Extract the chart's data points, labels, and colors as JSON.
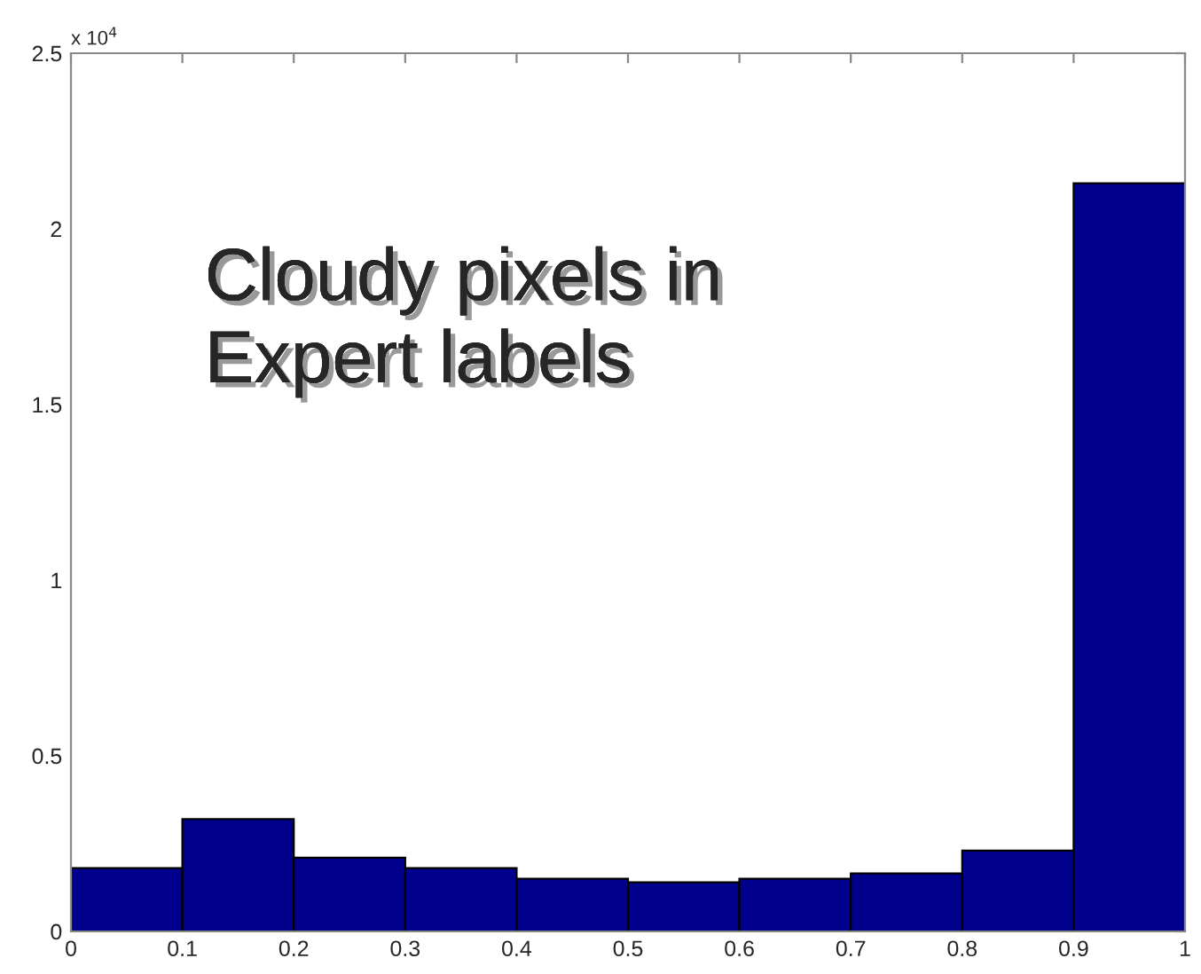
{
  "chart_data": {
    "type": "histogram",
    "bins": [
      0,
      0.1,
      0.2,
      0.3,
      0.4,
      0.5,
      0.6,
      0.7,
      0.8,
      0.9,
      1
    ],
    "values": [
      0.18,
      0.32,
      0.21,
      0.18,
      0.15,
      0.14,
      0.15,
      0.165,
      0.23,
      2.13
    ],
    "color": "#00008c",
    "xlim": [
      0,
      1
    ],
    "xticks": [
      0,
      0.1,
      0.2,
      0.3,
      0.4,
      0.5,
      0.6,
      0.7,
      0.8,
      0.9,
      1
    ],
    "ylim": [
      0,
      2.5
    ],
    "yticks": [
      0,
      0.5,
      1,
      1.5,
      2,
      2.5
    ],
    "grid": false,
    "annotations": [
      "x 10$^{4}$",
      "Cloudy pixels in\nExpert labels"
    ]
  }
}
